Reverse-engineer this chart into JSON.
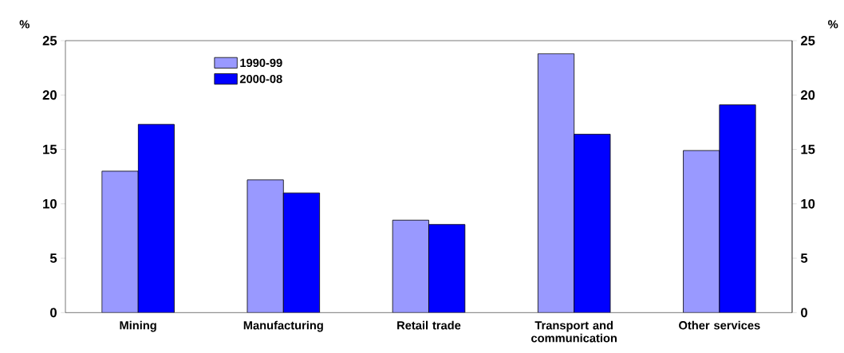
{
  "chart_data": {
    "type": "bar",
    "categories": [
      "Mining",
      "Manufacturing",
      "Retail trade",
      "Transport and communication",
      "Other services"
    ],
    "series": [
      {
        "name": "1990-99",
        "color": "#9999ff",
        "values": [
          13.0,
          12.2,
          8.5,
          23.8,
          14.9
        ]
      },
      {
        "name": "2000-08",
        "color": "#0000ff",
        "values": [
          17.3,
          11.0,
          8.1,
          16.4,
          19.1
        ]
      }
    ],
    "ylabel": "%",
    "y2label": "%",
    "ylim": [
      0,
      25
    ],
    "yticks": [
      0,
      5,
      10,
      15,
      20,
      25
    ],
    "y2lim": [
      0,
      25
    ],
    "y2ticks": [
      0,
      5,
      10,
      15,
      20,
      25
    ],
    "grid": false,
    "legend": "top left"
  }
}
